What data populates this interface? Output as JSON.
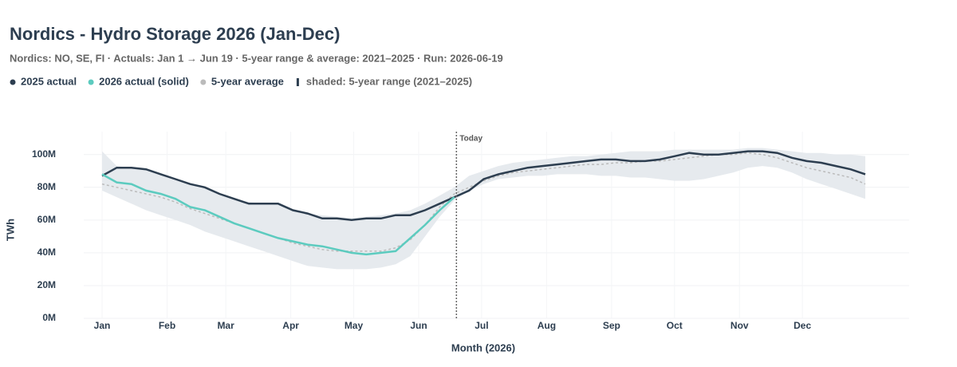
{
  "chart_data": {
    "type": "line",
    "title": "Nordics - Hydro Storage 2026 (Jan-Dec)",
    "subtitle": "Nordics: NO, SE, FI  ·  Actuals: Jan 1 → Jun 19  ·  5-year range & average: 2021–2025  ·  Run: 2026-06-19",
    "x_label": "Month (2026)",
    "y_label": "TWh",
    "x": [
      "2026-01-01",
      "2026-01-08",
      "2026-01-15",
      "2026-01-22",
      "2026-01-29",
      "2026-02-05",
      "2026-02-12",
      "2026-02-19",
      "2026-02-26",
      "2026-03-05",
      "2026-03-12",
      "2026-03-19",
      "2026-03-26",
      "2026-04-02",
      "2026-04-09",
      "2026-04-16",
      "2026-04-23",
      "2026-04-30",
      "2026-05-07",
      "2026-05-14",
      "2026-05-21",
      "2026-05-28",
      "2026-06-04",
      "2026-06-11",
      "2026-06-18",
      "2026-06-25",
      "2026-07-02",
      "2026-07-09",
      "2026-07-16",
      "2026-07-23",
      "2026-07-30",
      "2026-08-06",
      "2026-08-13",
      "2026-08-20",
      "2026-08-27",
      "2026-09-03",
      "2026-09-10",
      "2026-09-17",
      "2026-09-24",
      "2026-10-01",
      "2026-10-08",
      "2026-10-15",
      "2026-10-22",
      "2026-10-29",
      "2026-11-05",
      "2026-11-12",
      "2026-11-19",
      "2026-11-26",
      "2026-12-03",
      "2026-12-10",
      "2026-12-17",
      "2026-12-24",
      "2026-12-31"
    ],
    "band": {
      "name": "shaded: 5-year range (2021–2025)",
      "color": "#e6eaee",
      "lower": [
        78000000,
        74000000,
        70000000,
        66000000,
        63000000,
        60000000,
        57000000,
        53000000,
        50000000,
        47000000,
        44000000,
        41000000,
        38000000,
        35000000,
        32000000,
        31000000,
        30000000,
        30000000,
        30000000,
        31000000,
        33000000,
        38000000,
        50000000,
        62000000,
        72000000,
        78000000,
        82000000,
        85000000,
        86000000,
        87000000,
        87000000,
        88000000,
        88000000,
        88000000,
        87000000,
        87000000,
        86000000,
        86000000,
        85000000,
        84000000,
        84000000,
        85000000,
        87000000,
        89000000,
        92000000,
        93000000,
        92000000,
        89000000,
        85000000,
        82000000,
        79000000,
        76000000,
        73000000
      ],
      "upper": [
        102000000,
        93000000,
        92000000,
        91000000,
        88000000,
        85000000,
        82000000,
        80000000,
        76000000,
        73000000,
        71000000,
        70000000,
        70000000,
        66000000,
        64000000,
        63000000,
        62000000,
        61000000,
        62000000,
        63000000,
        64000000,
        66000000,
        70000000,
        75000000,
        80000000,
        87000000,
        90000000,
        93000000,
        95000000,
        96000000,
        97000000,
        98000000,
        99000000,
        99000000,
        100000000,
        101000000,
        102000000,
        102000000,
        102000000,
        103000000,
        103000000,
        103000000,
        103000000,
        103000000,
        104000000,
        104000000,
        103000000,
        102000000,
        101000000,
        101000000,
        100000000,
        100000000,
        99000000
      ]
    },
    "series": [
      {
        "name": "5-year average",
        "color": "#bbbbbb",
        "dash": true,
        "values": [
          82000000,
          80000000,
          78000000,
          76000000,
          74000000,
          71000000,
          67000000,
          64000000,
          61000000,
          58000000,
          55000000,
          52000000,
          49000000,
          46000000,
          44000000,
          42000000,
          41000000,
          41000000,
          41000000,
          41000000,
          43000000,
          48000000,
          57000000,
          68000000,
          76000000,
          80000000,
          84000000,
          87000000,
          89000000,
          90000000,
          91000000,
          92000000,
          93000000,
          94000000,
          94000000,
          95000000,
          95000000,
          96000000,
          96000000,
          97000000,
          98000000,
          99000000,
          100000000,
          100000000,
          101000000,
          100000000,
          98000000,
          95000000,
          92000000,
          90000000,
          88000000,
          86000000,
          82000000
        ]
      },
      {
        "name": "2025 actual",
        "color": "#2d3e50",
        "values": [
          87000000,
          92000000,
          92000000,
          91000000,
          88000000,
          85000000,
          82000000,
          80000000,
          76000000,
          73000000,
          70000000,
          70000000,
          70000000,
          66000000,
          64000000,
          61000000,
          61000000,
          60000000,
          61000000,
          61000000,
          63000000,
          63000000,
          66000000,
          70000000,
          74000000,
          78000000,
          85000000,
          88000000,
          90000000,
          92000000,
          93000000,
          94000000,
          95000000,
          96000000,
          97000000,
          97000000,
          96000000,
          96000000,
          97000000,
          99000000,
          101000000,
          100000000,
          100000000,
          101000000,
          102000000,
          102000000,
          101000000,
          98000000,
          96000000,
          95000000,
          93000000,
          91000000,
          88000000
        ]
      },
      {
        "name": "2026 actual (solid)",
        "color": "#5ccbbf",
        "values": [
          88000000,
          83000000,
          82000000,
          78000000,
          76000000,
          73000000,
          68000000,
          66000000,
          62000000,
          58000000,
          55000000,
          52000000,
          49000000,
          47000000,
          45000000,
          44000000,
          42000000,
          40000000,
          39000000,
          40000000,
          41000000,
          49000000,
          57000000,
          66000000,
          74000000,
          null,
          null,
          null,
          null,
          null,
          null,
          null,
          null,
          null,
          null,
          null,
          null,
          null,
          null,
          null,
          null,
          null,
          null,
          null,
          null,
          null,
          null,
          null,
          null,
          null,
          null,
          null,
          null
        ]
      }
    ],
    "legend_order": [
      1,
      2,
      0
    ],
    "today": {
      "x": "2026-06-19",
      "label": "Today"
    },
    "xlim": [
      "2026-01-01",
      "2026-12-31"
    ],
    "xticks": [
      {
        "value": "2026-01-01",
        "label": "Jan"
      },
      {
        "value": "2026-02-01",
        "label": "Feb"
      },
      {
        "value": "2026-03-01",
        "label": "Mar"
      },
      {
        "value": "2026-04-01",
        "label": "Apr"
      },
      {
        "value": "2026-05-01",
        "label": "May"
      },
      {
        "value": "2026-06-01",
        "label": "Jun"
      },
      {
        "value": "2026-07-01",
        "label": "Jul"
      },
      {
        "value": "2026-08-01",
        "label": "Aug"
      },
      {
        "value": "2026-09-01",
        "label": "Sep"
      },
      {
        "value": "2026-10-01",
        "label": "Oct"
      },
      {
        "value": "2026-11-01",
        "label": "Nov"
      },
      {
        "value": "2026-12-01",
        "label": "Dec"
      }
    ],
    "ylim": [
      0,
      114000000
    ],
    "yticks": [
      {
        "value": 0,
        "label": "0M"
      },
      {
        "value": 20000000,
        "label": "20M"
      },
      {
        "value": 40000000,
        "label": "40M"
      },
      {
        "value": 60000000,
        "label": "60M"
      },
      {
        "value": 80000000,
        "label": "80M"
      },
      {
        "value": 100000000,
        "label": "100M"
      }
    ],
    "grid": true
  }
}
